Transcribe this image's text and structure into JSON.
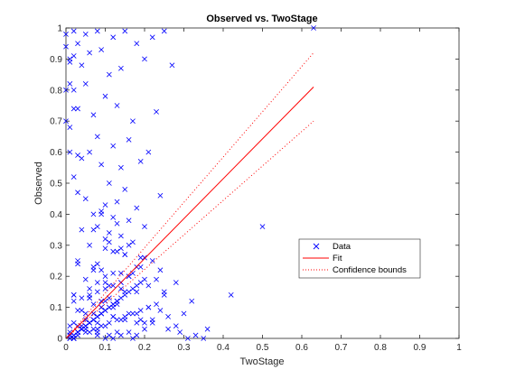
{
  "chart_data": {
    "type": "scatter",
    "title": "Observed vs. TwoStage",
    "xlabel": "TwoStage",
    "ylabel": "Observed",
    "xlim": [
      0,
      1
    ],
    "ylim": [
      0,
      1
    ],
    "xticks": [
      "0",
      "0.1",
      "0.2",
      "0.3",
      "0.4",
      "0.5",
      "0.6",
      "0.7",
      "0.8",
      "0.9",
      "1"
    ],
    "yticks": [
      "0",
      "0.1",
      "0.2",
      "0.3",
      "0.4",
      "0.5",
      "0.6",
      "0.7",
      "0.8",
      "0.9",
      "1"
    ],
    "grid": false,
    "legend_position": "lower-right",
    "legend": [
      "Data",
      "Fit",
      "Confidence bounds"
    ],
    "series": [
      {
        "name": "Data",
        "marker": "x",
        "color": "#0000ff",
        "x": [
          0.02,
          0.03,
          0.05,
          0.08,
          0.12,
          0.15,
          0.18,
          0.22,
          0.25,
          0.01,
          0.04,
          0.06,
          0.09,
          0.11,
          0.14,
          0.2,
          0.27,
          0.02,
          0.05,
          0.1,
          0.03,
          0.07,
          0.13,
          0.17,
          0.23,
          0.01,
          0.08,
          0.12,
          0.16,
          0.21,
          0.04,
          0.06,
          0.09,
          0.14,
          0.19,
          0.02,
          0.11,
          0.15,
          0.24,
          0.03,
          0.05,
          0.1,
          0.13,
          0.18,
          0.07,
          0.09,
          0.12,
          0.16,
          0.2,
          0.04,
          0.08,
          0.11,
          0.14,
          0.17,
          0.06,
          0.1,
          0.13,
          0.15,
          0.19,
          0.22,
          0.03,
          0.07,
          0.09,
          0.12,
          0.16,
          0.05,
          0.08,
          0.11,
          0.14,
          0.18,
          0.02,
          0.06,
          0.1,
          0.13,
          0.21,
          0.04,
          0.09,
          0.12,
          0.15,
          0.2,
          0.01,
          0.05,
          0.08,
          0.11,
          0.17,
          0.03,
          0.07,
          0.1,
          0.14,
          0.25,
          0.06,
          0.09,
          0.12,
          0.16,
          0.19,
          0.02,
          0.04,
          0.08,
          0.13,
          0.18,
          0.01,
          0.02,
          0.03,
          0.04,
          0.05,
          0.06,
          0.07,
          0.08,
          0.09,
          0.1,
          0.11,
          0.12,
          0.13,
          0.14,
          0.15,
          0.16,
          0.17,
          0.18,
          0.19,
          0.2,
          0.01,
          0.03,
          0.05,
          0.07,
          0.09,
          0.11,
          0.13,
          0.15,
          0.17,
          0.19,
          0.21,
          0.23,
          0.02,
          0.04,
          0.06,
          0.08,
          0.1,
          0.12,
          0.14,
          0.16,
          0.01,
          0.02,
          0.04,
          0.06,
          0.08,
          0.1,
          0.12,
          0.14,
          0.03,
          0.05,
          0.07,
          0.09,
          0.11,
          0.13,
          0.15,
          0.02,
          0.06,
          0.1,
          0.14,
          0.18,
          0.01,
          0.03,
          0.05,
          0.07,
          0.09,
          0.11,
          0.13,
          0.02,
          0.04,
          0.06,
          0.08,
          0.1,
          0.12,
          0.01,
          0.03,
          0.05,
          0.07,
          0.09,
          0.02,
          0.04,
          0.06,
          0.08,
          0.01,
          0.03,
          0.05,
          0.07,
          0.02,
          0.04,
          0.06,
          0.01,
          0.03,
          0.05,
          0.02,
          0.04,
          0.01,
          0.03,
          0.02,
          0.01,
          0.08,
          0.12,
          0.16,
          0.2,
          0.24,
          0.28,
          0.32,
          0.18,
          0.22,
          0.26,
          0.1,
          0.14,
          0.15,
          0.19,
          0.23,
          0.07,
          0.11,
          0.17,
          0.21,
          0.09,
          0.13,
          0.25,
          0.3,
          0.36,
          0.42,
          0.5,
          0.63,
          0.35,
          0.28,
          0.26,
          0.29,
          0.33,
          0.31,
          0.22,
          0.24,
          0.18,
          0.2,
          0.16,
          0.14,
          0.12,
          0.1,
          0.08,
          0.0,
          0.0,
          0.01,
          0.0,
          0.02,
          0.01,
          0.03,
          0.0,
          0.01,
          0.02
        ],
        "y": [
          0.99,
          0.95,
          0.98,
          0.99,
          0.97,
          0.99,
          0.95,
          0.97,
          0.99,
          0.9,
          0.88,
          0.92,
          0.93,
          0.85,
          0.87,
          0.9,
          0.88,
          0.8,
          0.82,
          0.78,
          0.74,
          0.72,
          0.75,
          0.7,
          0.73,
          0.68,
          0.65,
          0.62,
          0.64,
          0.6,
          0.58,
          0.6,
          0.56,
          0.55,
          0.57,
          0.52,
          0.5,
          0.48,
          0.46,
          0.47,
          0.45,
          0.43,
          0.44,
          0.42,
          0.4,
          0.41,
          0.39,
          0.38,
          0.36,
          0.35,
          0.36,
          0.34,
          0.33,
          0.31,
          0.3,
          0.29,
          0.28,
          0.27,
          0.26,
          0.25,
          0.24,
          0.23,
          0.22,
          0.21,
          0.2,
          0.19,
          0.18,
          0.17,
          0.16,
          0.15,
          0.14,
          0.13,
          0.12,
          0.11,
          0.1,
          0.09,
          0.08,
          0.07,
          0.06,
          0.05,
          0.04,
          0.03,
          0.02,
          0.01,
          0.0,
          0.25,
          0.22,
          0.2,
          0.18,
          0.15,
          0.13,
          0.12,
          0.1,
          0.08,
          0.06,
          0.05,
          0.04,
          0.03,
          0.02,
          0.01,
          0.0,
          0.01,
          0.02,
          0.03,
          0.04,
          0.05,
          0.06,
          0.07,
          0.08,
          0.09,
          0.1,
          0.11,
          0.12,
          0.13,
          0.14,
          0.15,
          0.16,
          0.17,
          0.18,
          0.19,
          0.0,
          0.01,
          0.02,
          0.03,
          0.04,
          0.05,
          0.06,
          0.07,
          0.08,
          0.09,
          0.1,
          0.11,
          0.12,
          0.13,
          0.14,
          0.15,
          0.16,
          0.17,
          0.18,
          0.2,
          0.01,
          0.0,
          0.03,
          0.02,
          0.05,
          0.04,
          0.07,
          0.06,
          0.09,
          0.08,
          0.11,
          0.1,
          0.13,
          0.12,
          0.15,
          0.14,
          0.16,
          0.18,
          0.21,
          0.23,
          0.0,
          0.02,
          0.04,
          0.06,
          0.08,
          0.1,
          0.12,
          0.01,
          0.03,
          0.05,
          0.07,
          0.09,
          0.11,
          0.02,
          0.04,
          0.06,
          0.08,
          0.1,
          0.0,
          0.03,
          0.05,
          0.07,
          0.01,
          0.02,
          0.04,
          0.06,
          0.0,
          0.03,
          0.05,
          0.01,
          0.02,
          0.04,
          0.0,
          0.03,
          0.01,
          0.02,
          0.0,
          0.01,
          0.24,
          0.28,
          0.3,
          0.26,
          0.22,
          0.18,
          0.12,
          0.08,
          0.05,
          0.03,
          0.32,
          0.29,
          0.27,
          0.23,
          0.19,
          0.35,
          0.31,
          0.21,
          0.17,
          0.4,
          0.37,
          0.14,
          0.08,
          0.03,
          0.14,
          0.36,
          1.0,
          0.0,
          0.04,
          0.07,
          0.02,
          0.01,
          0.0,
          0.06,
          0.09,
          0.05,
          0.03,
          0.02,
          0.01,
          0.0,
          0.0,
          0.01,
          0.98,
          0.94,
          0.89,
          0.8,
          0.74,
          0.6,
          0.59,
          0.7,
          0.82,
          0.91
        ]
      },
      {
        "name": "Fit",
        "style": "solid",
        "color": "#ff0000",
        "x": [
          0,
          0.63
        ],
        "y": [
          -0.02,
          0.81
        ]
      },
      {
        "name": "Confidence bounds",
        "style": "dotted",
        "color": "#ff0000",
        "upper": {
          "x": [
            0,
            0.63
          ],
          "y": [
            -0.02,
            0.92
          ]
        },
        "lower": {
          "x": [
            0,
            0.63
          ],
          "y": [
            -0.02,
            0.7
          ]
        }
      }
    ]
  }
}
